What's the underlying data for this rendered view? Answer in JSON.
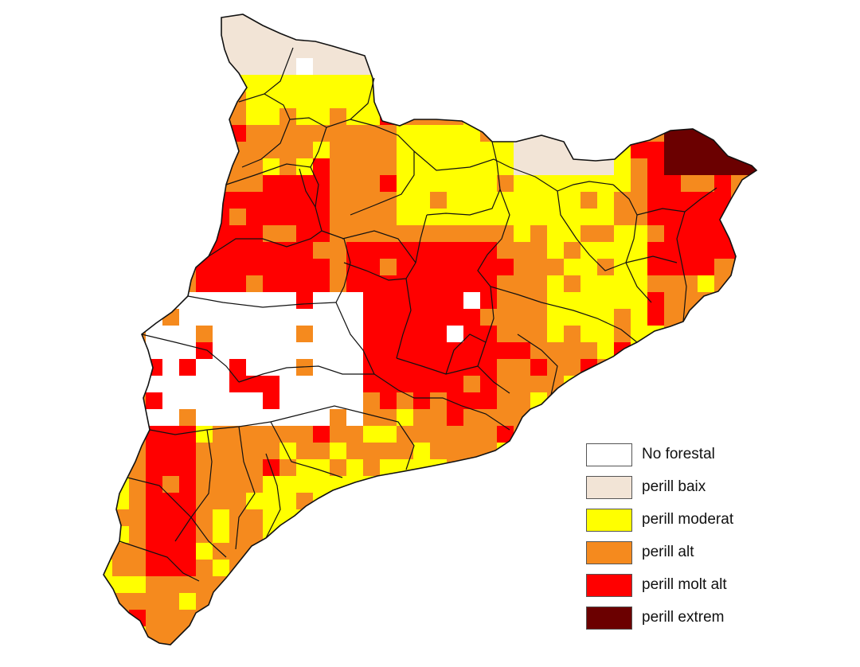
{
  "map": {
    "region": "Catalonia",
    "colors": {
      "no_forestal": "#ffffff",
      "baix": "#f2e4d6",
      "moderat": "#ffff00",
      "alt": "#f58a1e",
      "molt_alt": "#ff0000",
      "extrem": "#6b0000",
      "border": "#111111"
    }
  },
  "legend": {
    "items": [
      {
        "label": "No forestal",
        "color": "#ffffff"
      },
      {
        "label": "perill baix",
        "color": "#f2e4d6"
      },
      {
        "label": "perill moderat",
        "color": "#ffff00"
      },
      {
        "label": "perill alt",
        "color": "#f58a1e"
      },
      {
        "label": "perill molt alt",
        "color": "#ff0000"
      },
      {
        "label": "perill extrem",
        "color": "#6b0000"
      }
    ]
  }
}
